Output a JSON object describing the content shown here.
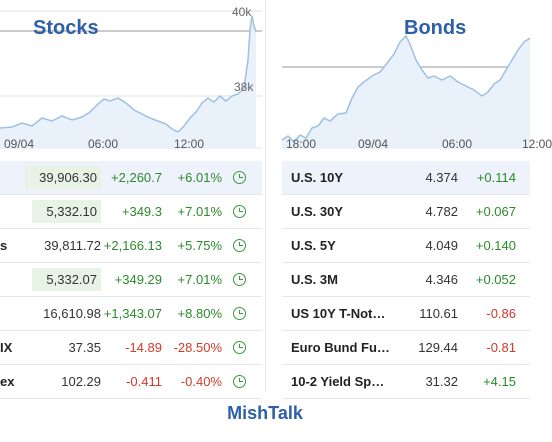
{
  "brand": "MishTalk",
  "colors": {
    "accent": "#2e5fa7",
    "positive": "#2c8a2c",
    "negative": "#d23a2a",
    "chart_line": "#9fc0e4",
    "chart_fill": "#e9f1fb"
  },
  "stocks": {
    "title": "Stocks",
    "y_labels": [
      "40k",
      "38k"
    ],
    "x_ticks": [
      "09/04",
      "06:00",
      "12:00"
    ],
    "rows": [
      {
        "name": "",
        "value": "39,906.30",
        "change": "+2,260.7",
        "pct": "+6.01%",
        "icon": "clock-icon",
        "shaded": true
      },
      {
        "name": "",
        "value": "5,332.10",
        "change": "+349.3",
        "pct": "+7.01%",
        "icon": "clock-icon",
        "shaded": true
      },
      {
        "name": "s",
        "value": "39,811.72",
        "change": "+2,166.13",
        "pct": "+5.75%",
        "icon": "clock-icon",
        "shaded": false
      },
      {
        "name": "",
        "value": "5,332.07",
        "change": "+349.29",
        "pct": "+7.01%",
        "icon": "clock-icon",
        "shaded": true
      },
      {
        "name": "",
        "value": "16,610.98",
        "change": "+1,343.07",
        "pct": "+8.80%",
        "icon": "clock-icon",
        "shaded": false
      },
      {
        "name": "IX",
        "value": "37.35",
        "change": "-14.89",
        "pct": "-28.50%",
        "icon": "clock-icon",
        "shaded": false
      },
      {
        "name": "ex",
        "value": "102.29",
        "change": "-0.411",
        "pct": "-0.40%",
        "icon": "clock-icon",
        "shaded": false
      }
    ]
  },
  "bonds": {
    "title": "Bonds",
    "x_ticks": [
      "18:00",
      "09/04",
      "06:00",
      "12:00"
    ],
    "rows": [
      {
        "name": "U.S. 10Y",
        "value": "4.374",
        "change": "+0.114"
      },
      {
        "name": "U.S. 30Y",
        "value": "4.782",
        "change": "+0.067"
      },
      {
        "name": "U.S. 5Y",
        "value": "4.049",
        "change": "+0.140"
      },
      {
        "name": "U.S. 3M",
        "value": "4.346",
        "change": "+0.052"
      },
      {
        "name": "US 10Y T-Not…",
        "value": "110.61",
        "change": "-0.86"
      },
      {
        "name": "Euro Bund Fu…",
        "value": "129.44",
        "change": "-0.81"
      },
      {
        "name": "10-2 Yield Sp…",
        "value": "31.32",
        "change": "+4.15"
      }
    ]
  }
}
